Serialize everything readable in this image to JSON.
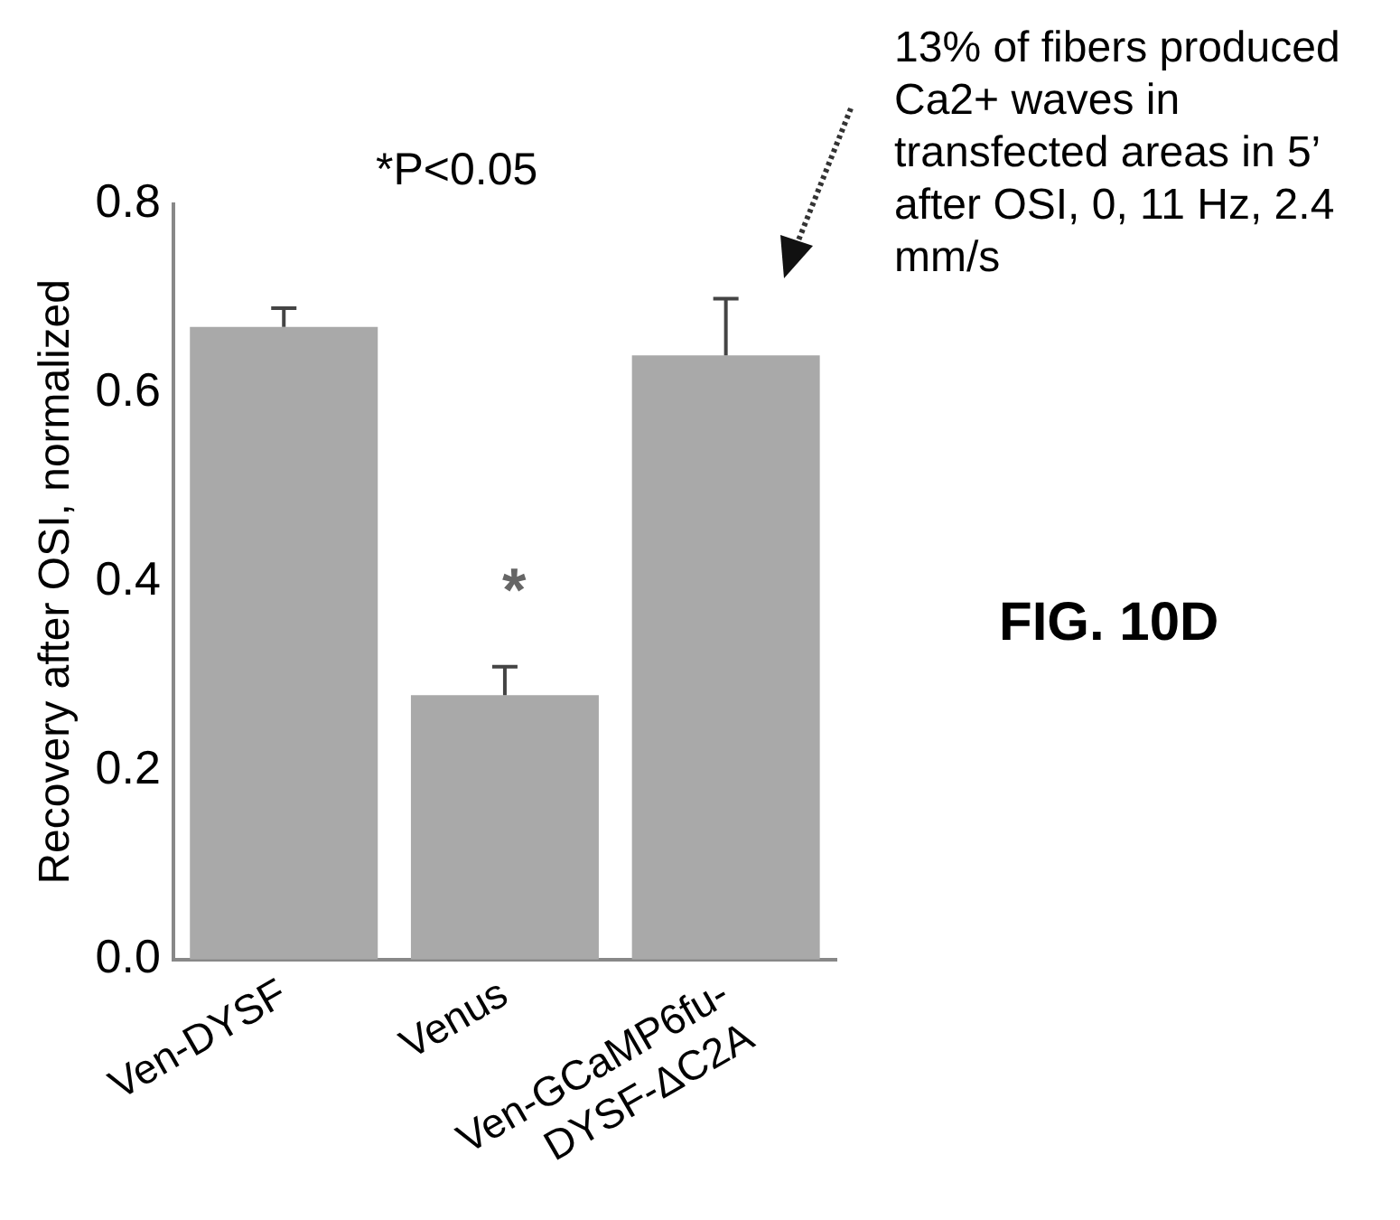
{
  "chart_data": {
    "type": "bar",
    "ylabel": "Recovery after OSI, normalized",
    "categories": [
      "Ven-DYSF",
      "Venus",
      "Ven-GCaMP6fu-\nDYSF-ΔC2A"
    ],
    "values": [
      0.67,
      0.28,
      0.64
    ],
    "errors": [
      [
        0.67,
        0.69
      ],
      [
        0.28,
        0.31
      ],
      [
        0.64,
        0.7
      ]
    ],
    "color": "#a9a9a9",
    "ylim": [
      0,
      0.8
    ],
    "yticks": [
      {
        "value": 0,
        "label": "0.0"
      },
      {
        "value": 0.2,
        "label": "0.2"
      },
      {
        "value": 0.4,
        "label": "0.4"
      },
      {
        "value": 0.6,
        "label": "0.6"
      },
      {
        "value": 0.8,
        "label": "0.8"
      }
    ],
    "grid": false,
    "legend": false,
    "annotations": [
      "*P<0.05",
      "13% of fibers produced Ca2+ waves in transfected areas in 5’ after OSI, 0, 11 Hz, 2.4 mm/s",
      "FIG. 10D",
      "*"
    ]
  }
}
